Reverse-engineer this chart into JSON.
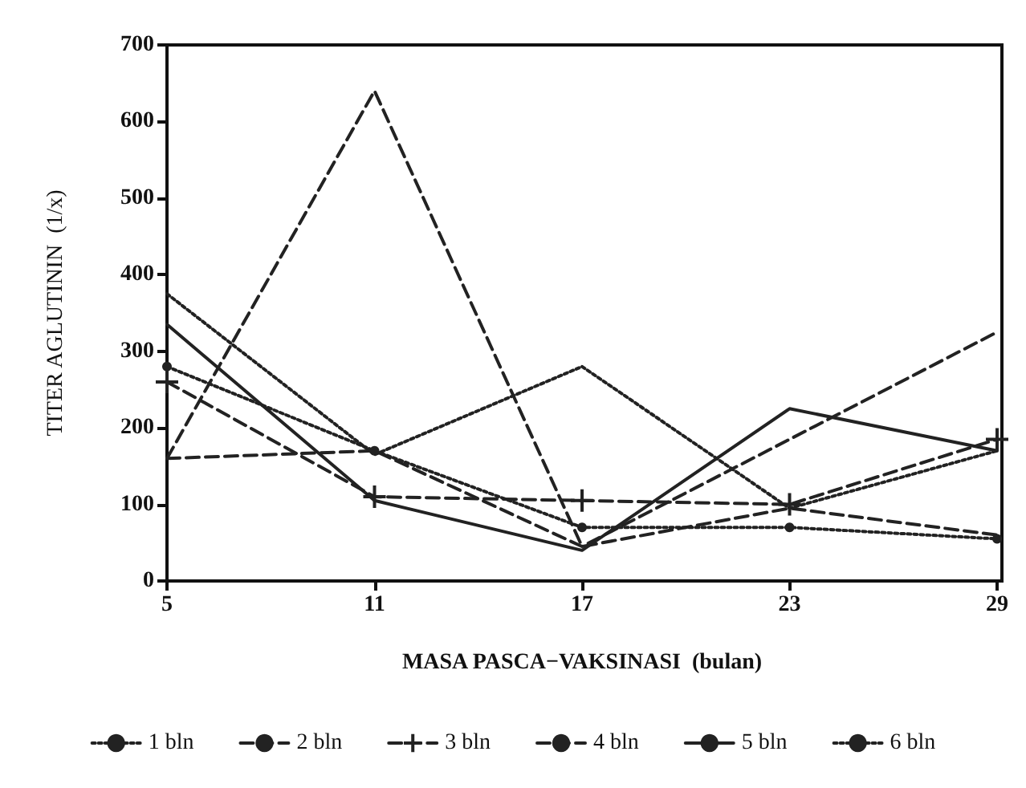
{
  "chart_data": {
    "type": "line",
    "xlabel": "MASA PASCA−VAKSINASI  (bulan)",
    "ylabel": "TITER AGLUTININ  (1/x)",
    "x": [
      5,
      11,
      17,
      23,
      29
    ],
    "xlim": [
      5,
      29
    ],
    "xticks": [
      5,
      11,
      17,
      23,
      29
    ],
    "ylim": [
      0,
      700
    ],
    "yticks": [
      0,
      100,
      200,
      300,
      400,
      500,
      600,
      700
    ],
    "grid": false,
    "legend": "bottom",
    "marker": "none",
    "series": [
      {
        "name": "1 bln",
        "color": "#222222",
        "line_style": "dotted",
        "values": [
          375,
          165,
          280,
          95,
          170
        ]
      },
      {
        "name": "2 bln",
        "color": "#222222",
        "line_style": "dashed",
        "values": [
          160,
          640,
          45,
          95,
          60
        ]
      },
      {
        "name": "3 bln",
        "color": "#222222",
        "line_style": "dashed",
        "marker": "cross",
        "values": [
          260,
          110,
          105,
          100,
          185
        ]
      },
      {
        "name": "4 bln",
        "color": "#222222",
        "line_style": "dashed",
        "values": [
          160,
          170,
          45,
          185,
          325
        ]
      },
      {
        "name": "5 bln",
        "color": "#222222",
        "line_style": "solid",
        "values": [
          335,
          105,
          40,
          225,
          170
        ]
      },
      {
        "name": "6 bln",
        "color": "#222222",
        "line_style": "dotted",
        "marker": "circle",
        "values": [
          280,
          170,
          70,
          70,
          55
        ]
      }
    ]
  }
}
